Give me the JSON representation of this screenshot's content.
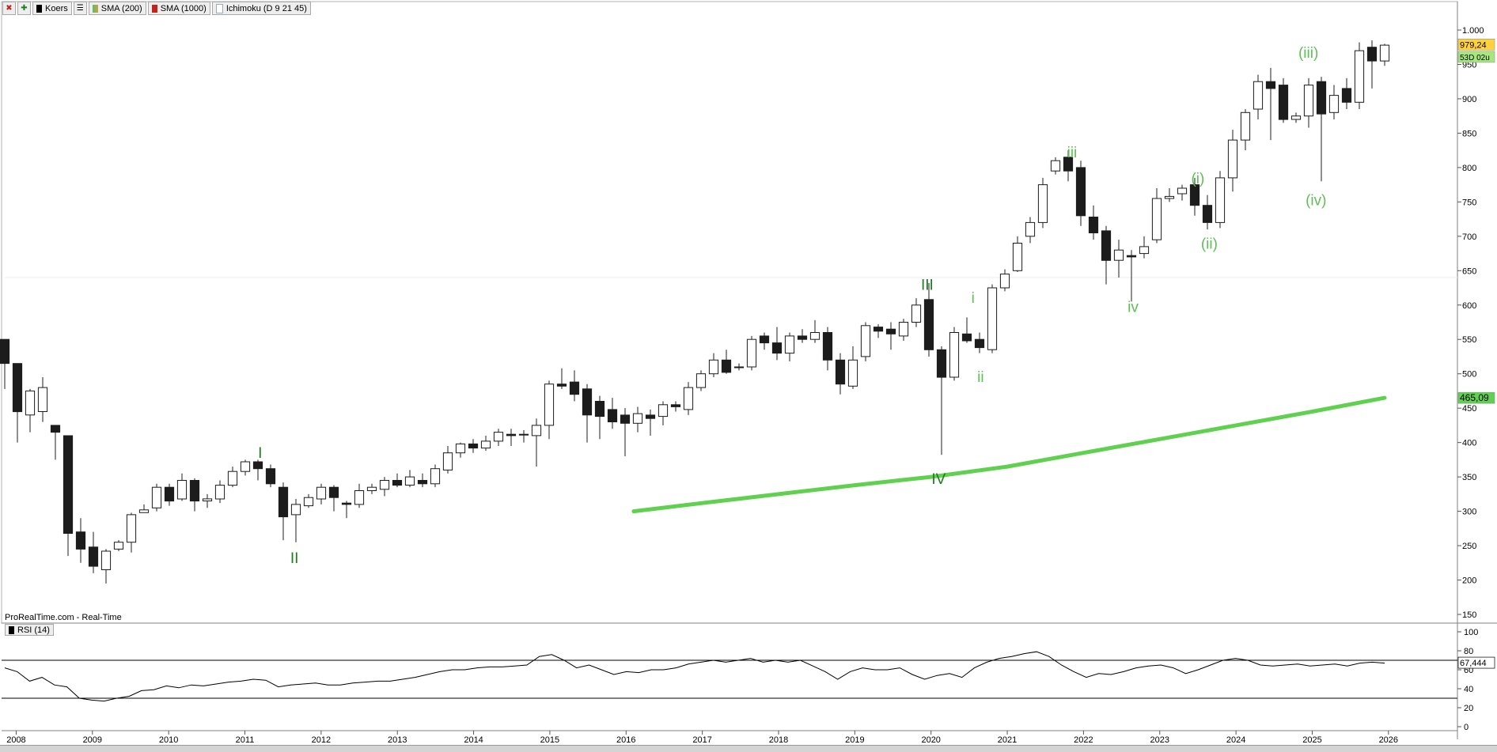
{
  "toolbar": {
    "items": [
      {
        "label": "Koers",
        "color": "#000000"
      },
      {
        "label": "SMA (200)",
        "color": "#5fbf55"
      },
      {
        "label": "SMA (1000)",
        "color": "#c0241c"
      },
      {
        "label": "Ichimoku (D 9 21 45)",
        "color": "#c8d4e0"
      }
    ]
  },
  "watermark": "ProRealTime.com - Real-Time",
  "rsi_legend": "RSI (14)",
  "chart_data": [
    {
      "type": "candlestick",
      "subtype": "monthly price candles (plotted every ~2 months)",
      "ylim": [
        140,
        1010
      ],
      "yticks": [
        "150",
        "200",
        "250",
        "300",
        "350",
        "400",
        "450",
        "500",
        "550",
        "600",
        "650",
        "700",
        "750",
        "800",
        "850",
        "900",
        "950",
        "1.000"
      ],
      "xticks": [
        "2008",
        "2009",
        "2010",
        "2011",
        "2012",
        "2013",
        "2014",
        "2015",
        "2016",
        "2017",
        "2018",
        "2019",
        "2020",
        "2021",
        "2022",
        "2023",
        "2024",
        "2025",
        "2026"
      ],
      "x_start": 2007.85,
      "x_end": 2025.95,
      "candles": [
        [
          550,
          515,
          478,
          550
        ],
        [
          515,
          445,
          400,
          515
        ],
        [
          440,
          475,
          415,
          478
        ],
        [
          445,
          480,
          430,
          495
        ],
        [
          425,
          415,
          375,
          425
        ],
        [
          410,
          268,
          235,
          410
        ],
        [
          270,
          245,
          225,
          290
        ],
        [
          248,
          220,
          210,
          270
        ],
        [
          215,
          242,
          195,
          245
        ],
        [
          245,
          255,
          242,
          258
        ],
        [
          255,
          295,
          240,
          298
        ],
        [
          298,
          302,
          298,
          310
        ],
        [
          305,
          335,
          300,
          340
        ],
        [
          335,
          315,
          308,
          340
        ],
        [
          318,
          345,
          315,
          355
        ],
        [
          345,
          315,
          300,
          348
        ],
        [
          315,
          318,
          305,
          325
        ],
        [
          318,
          338,
          312,
          345
        ],
        [
          338,
          358,
          335,
          365
        ],
        [
          358,
          372,
          352,
          375
        ],
        [
          372,
          362,
          345,
          375
        ],
        [
          362,
          340,
          335,
          368
        ],
        [
          335,
          292,
          258,
          342
        ],
        [
          295,
          310,
          255,
          318
        ],
        [
          308,
          320,
          305,
          325
        ],
        [
          318,
          335,
          310,
          340
        ],
        [
          335,
          320,
          300,
          338
        ],
        [
          312,
          310,
          290,
          315
        ],
        [
          310,
          330,
          305,
          340
        ],
        [
          330,
          335,
          325,
          340
        ],
        [
          332,
          345,
          322,
          350
        ],
        [
          345,
          338,
          335,
          355
        ],
        [
          338,
          350,
          335,
          360
        ],
        [
          345,
          340,
          335,
          355
        ],
        [
          340,
          362,
          335,
          368
        ],
        [
          360,
          385,
          355,
          395
        ],
        [
          385,
          398,
          378,
          400
        ],
        [
          398,
          392,
          385,
          405
        ],
        [
          392,
          402,
          388,
          410
        ],
        [
          402,
          415,
          395,
          420
        ],
        [
          412,
          410,
          395,
          420
        ],
        [
          412,
          412,
          400,
          418
        ],
        [
          410,
          425,
          365,
          435
        ],
        [
          425,
          485,
          405,
          490
        ],
        [
          485,
          482,
          478,
          508
        ],
        [
          488,
          470,
          460,
          505
        ],
        [
          478,
          440,
          400,
          485
        ],
        [
          460,
          438,
          405,
          468
        ],
        [
          448,
          430,
          420,
          465
        ],
        [
          440,
          428,
          380,
          450
        ],
        [
          428,
          442,
          415,
          452
        ],
        [
          440,
          435,
          410,
          448
        ],
        [
          438,
          455,
          425,
          460
        ],
        [
          455,
          452,
          445,
          460
        ],
        [
          448,
          480,
          440,
          488
        ],
        [
          480,
          500,
          475,
          505
        ],
        [
          500,
          520,
          495,
          530
        ],
        [
          520,
          502,
          500,
          535
        ],
        [
          510,
          510,
          505,
          515
        ],
        [
          510,
          550,
          505,
          555
        ],
        [
          555,
          545,
          535,
          560
        ],
        [
          545,
          530,
          520,
          568
        ],
        [
          530,
          555,
          518,
          560
        ],
        [
          555,
          550,
          545,
          565
        ],
        [
          550,
          560,
          545,
          578
        ],
        [
          560,
          520,
          505,
          568
        ],
        [
          520,
          485,
          470,
          530
        ],
        [
          482,
          520,
          478,
          540
        ],
        [
          525,
          570,
          518,
          575
        ],
        [
          568,
          562,
          552,
          572
        ],
        [
          565,
          558,
          535,
          575
        ],
        [
          555,
          575,
          548,
          580
        ],
        [
          575,
          600,
          568,
          610
        ],
        [
          608,
          535,
          525,
          632
        ],
        [
          535,
          495,
          382,
          540
        ],
        [
          495,
          560,
          490,
          568
        ],
        [
          558,
          548,
          545,
          582
        ],
        [
          550,
          538,
          530,
          560
        ],
        [
          535,
          625,
          530,
          630
        ],
        [
          625,
          645,
          620,
          652
        ],
        [
          650,
          690,
          648,
          700
        ],
        [
          700,
          720,
          690,
          728
        ],
        [
          720,
          775,
          712,
          785
        ],
        [
          795,
          810,
          790,
          815
        ],
        [
          815,
          795,
          780,
          825
        ],
        [
          800,
          730,
          715,
          810
        ],
        [
          728,
          705,
          695,
          745
        ],
        [
          708,
          665,
          630,
          715
        ],
        [
          665,
          680,
          640,
          695
        ],
        [
          672,
          670,
          605,
          680
        ],
        [
          675,
          685,
          668,
          700
        ],
        [
          695,
          755,
          690,
          770
        ],
        [
          755,
          758,
          750,
          770
        ],
        [
          762,
          770,
          752,
          775
        ],
        [
          775,
          745,
          730,
          785
        ],
        [
          745,
          720,
          710,
          760
        ],
        [
          720,
          785,
          712,
          795
        ],
        [
          785,
          840,
          765,
          855
        ],
        [
          840,
          880,
          825,
          885
        ],
        [
          885,
          925,
          870,
          935
        ],
        [
          925,
          915,
          840,
          945
        ],
        [
          920,
          870,
          865,
          930
        ],
        [
          870,
          875,
          865,
          880
        ],
        [
          875,
          920,
          858,
          930
        ],
        [
          925,
          878,
          780,
          932
        ],
        [
          880,
          905,
          870,
          920
        ],
        [
          915,
          895,
          885,
          930
        ],
        [
          895,
          970,
          885,
          982
        ],
        [
          975,
          955,
          915,
          985
        ],
        [
          955,
          978,
          948,
          980
        ]
      ],
      "sma_200_line": {
        "x": [
          2016.1,
          2017.0,
          2018.0,
          2019.0,
          2020.0,
          2021.0,
          2022.0,
          2023.0,
          2024.0,
          2025.0,
          2025.95
        ],
        "values": [
          300,
          312,
          325,
          338,
          350,
          365,
          385,
          405,
          425,
          445,
          465
        ]
      },
      "last_price_label": "979,24",
      "countdown_label": "53D 02u",
      "sma_value_label": "465,09",
      "wave_labels": [
        {
          "text": "I",
          "x": 2011.2,
          "y": 378,
          "color": "#1e7d1e"
        },
        {
          "text": "II",
          "x": 2011.65,
          "y": 225,
          "color": "#1e7d1e"
        },
        {
          "text": "III",
          "x": 2019.95,
          "y": 622,
          "color": "#1e7d1e"
        },
        {
          "text": "IV",
          "x": 2020.1,
          "y": 340,
          "color": "#1e7d1e"
        },
        {
          "text": "i",
          "x": 2020.55,
          "y": 603,
          "color": "#5fbf55"
        },
        {
          "text": "ii",
          "x": 2020.65,
          "y": 488,
          "color": "#5fbf55"
        },
        {
          "text": "iii",
          "x": 2021.85,
          "y": 815,
          "color": "#5fbf55"
        },
        {
          "text": "iv",
          "x": 2022.65,
          "y": 590,
          "color": "#5fbf55"
        },
        {
          "text": "(i)",
          "x": 2023.5,
          "y": 777,
          "color": "#5fbf55"
        },
        {
          "text": "(ii)",
          "x": 2023.65,
          "y": 682,
          "color": "#5fbf55"
        },
        {
          "text": "(iii)",
          "x": 2024.95,
          "y": 960,
          "color": "#5fbf55"
        },
        {
          "text": "(iv)",
          "x": 2025.05,
          "y": 745,
          "color": "#5fbf55"
        }
      ]
    },
    {
      "type": "line",
      "title": "RSI (14)",
      "ylim": [
        0,
        100
      ],
      "yticks": [
        "0",
        "20",
        "40",
        "60",
        "80",
        "100"
      ],
      "hlines": [
        70,
        30
      ],
      "last_value_label": "67,444",
      "x_start": 2007.85,
      "x_end": 2025.95,
      "values": [
        62,
        58,
        48,
        52,
        44,
        42,
        30,
        28,
        27,
        30,
        32,
        38,
        39,
        43,
        41,
        44,
        43,
        45,
        47,
        48,
        50,
        49,
        42,
        44,
        45,
        46,
        44,
        44,
        46,
        47,
        48,
        48,
        50,
        52,
        55,
        58,
        60,
        60,
        62,
        63,
        63,
        64,
        65,
        74,
        76,
        70,
        62,
        65,
        60,
        55,
        58,
        57,
        60,
        60,
        62,
        66,
        68,
        70,
        68,
        70,
        72,
        68,
        70,
        68,
        70,
        64,
        58,
        50,
        58,
        62,
        60,
        60,
        62,
        55,
        50,
        54,
        56,
        52,
        62,
        68,
        72,
        74,
        77,
        79,
        74,
        65,
        58,
        52,
        56,
        55,
        58,
        62,
        64,
        65,
        62,
        56,
        60,
        65,
        70,
        72,
        70,
        65,
        64,
        65,
        66,
        64,
        65,
        66,
        64,
        67,
        68,
        67
      ]
    }
  ],
  "colors": {
    "bull_candle": "#ffffff",
    "bear_candle": "#1c1c1c",
    "sma_line": "#5fd14f",
    "last_price_bg": "#ffd23c",
    "countdown_bg": "#a6e87e",
    "sma_label_bg": "#5fd14f"
  }
}
